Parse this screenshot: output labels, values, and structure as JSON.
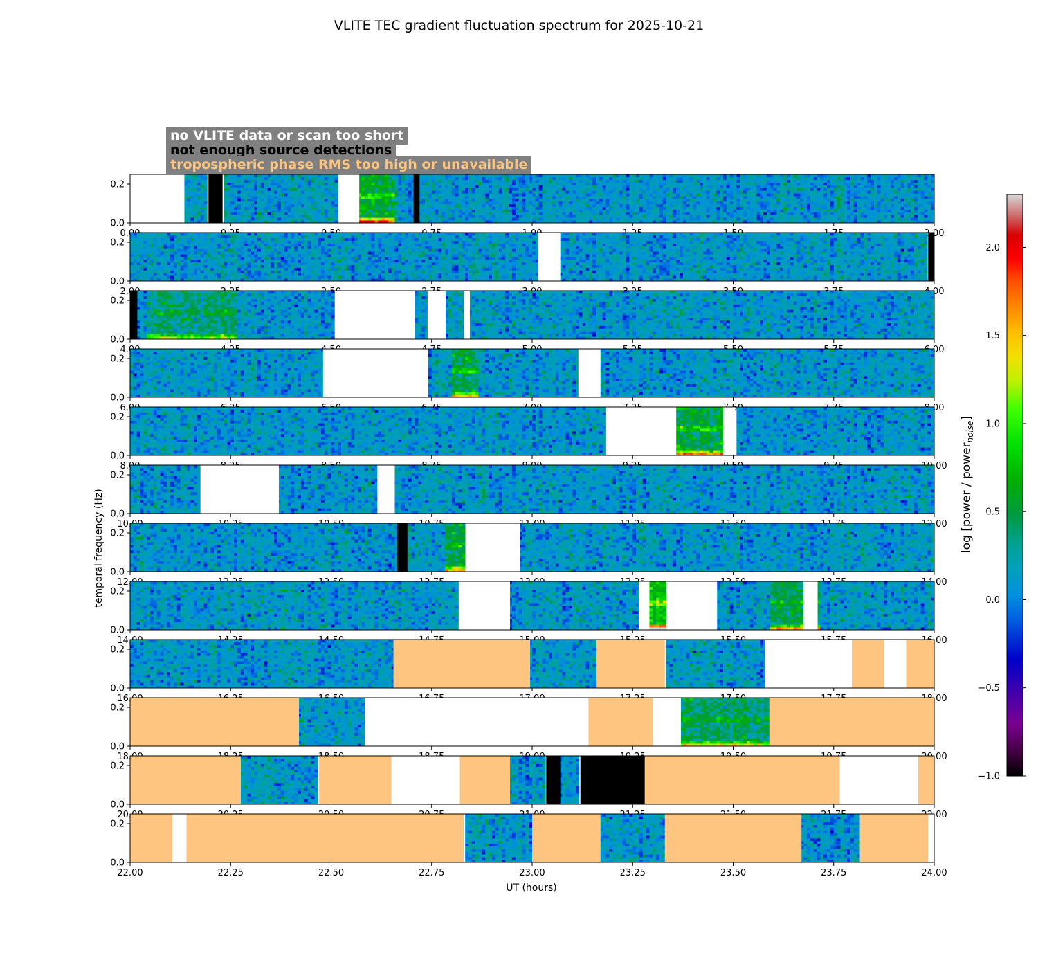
{
  "chart_data": {
    "type": "heatmap",
    "title": "VLITE TEC gradient fluctuation spectrum for 2025-10-21",
    "xlabel": "UT (hours)",
    "ylabel": "temporal frequency (Hz)",
    "colorbar_label": "log [power / power_noise]",
    "colorbar_range": [
      -1.0,
      2.3
    ],
    "colorbar_ticks": [
      "−1.0",
      "−0.5",
      "0.0",
      "0.5",
      "1.0",
      "1.5",
      "2.0"
    ],
    "y_range_hz": [
      0.0,
      0.25
    ],
    "y_ticks": [
      "0.0",
      "0.2"
    ],
    "legend": [
      {
        "label": "no VLITE data or scan too short",
        "color": "#ffffff"
      },
      {
        "label": "not enough source detections",
        "color": "#000000"
      },
      {
        "label": "tropospheric phase RMS too high or unavailable",
        "color": "#fdc57f"
      }
    ],
    "panels": [
      {
        "range": [
          0,
          2
        ],
        "ticks": [
          "0.00",
          "0.25",
          "0.50",
          "0.75",
          "1.00",
          "1.25",
          "1.50",
          "1.75",
          "2.00"
        ],
        "no_data": [
          [
            0.0,
            0.135
          ],
          [
            0.52,
            0.57
          ]
        ],
        "few_detections": [
          [
            0.195,
            0.23
          ],
          [
            0.705,
            0.72
          ]
        ],
        "tropo": [],
        "enhanced": [
          [
            0.57,
            0.655,
            0.9
          ]
        ]
      },
      {
        "range": [
          2,
          4
        ],
        "ticks": [
          "2.00",
          "2.25",
          "2.50",
          "2.75",
          "3.00",
          "3.25",
          "3.50",
          "3.75",
          "4.00"
        ],
        "no_data": [
          [
            3.015,
            3.07
          ]
        ],
        "few_detections": [
          [
            3.985,
            4.0
          ]
        ],
        "tropo": [],
        "enhanced": []
      },
      {
        "range": [
          4,
          6
        ],
        "ticks": [
          "4.00",
          "4.25",
          "4.50",
          "4.75",
          "5.00",
          "5.25",
          "5.50",
          "5.75",
          "6.00"
        ],
        "no_data": [
          [
            4.51,
            4.705
          ],
          [
            4.74,
            4.785
          ],
          [
            4.83,
            4.845
          ]
        ],
        "few_detections": [
          [
            4.0,
            4.018
          ]
        ],
        "tropo": [],
        "enhanced": [
          [
            4.04,
            4.27,
            0.5
          ]
        ]
      },
      {
        "range": [
          6,
          8
        ],
        "ticks": [
          "6.00",
          "6.25",
          "6.50",
          "6.75",
          "7.00",
          "7.25",
          "7.50",
          "7.75",
          "8.00"
        ],
        "no_data": [
          [
            6.48,
            6.74
          ],
          [
            7.115,
            7.17
          ]
        ],
        "few_detections": [],
        "tropo": [],
        "enhanced": [
          [
            6.8,
            6.87,
            0.7
          ]
        ]
      },
      {
        "range": [
          8,
          10
        ],
        "ticks": [
          "8.00",
          "8.25",
          "8.50",
          "8.75",
          "9.00",
          "9.25",
          "9.50",
          "9.75",
          "10.00"
        ],
        "no_data": [
          [
            9.185,
            9.355
          ],
          [
            9.475,
            9.505
          ]
        ],
        "few_detections": [],
        "tropo": [],
        "enhanced": [
          [
            9.355,
            9.475,
            0.8
          ]
        ]
      },
      {
        "range": [
          10,
          12
        ],
        "ticks": [
          "10.00",
          "10.25",
          "10.50",
          "10.75",
          "11.00",
          "11.25",
          "11.50",
          "11.75",
          "12.00"
        ],
        "no_data": [
          [
            10.175,
            10.37
          ],
          [
            10.615,
            10.655
          ]
        ],
        "few_detections": [],
        "tropo": [],
        "enhanced": []
      },
      {
        "range": [
          12,
          14
        ],
        "ticks": [
          "12.00",
          "12.25",
          "12.50",
          "12.75",
          "13.00",
          "13.25",
          "13.50",
          "13.75",
          "14.00"
        ],
        "no_data": [
          [
            12.835,
            12.97
          ]
        ],
        "few_detections": [
          [
            12.665,
            12.69
          ]
        ],
        "tropo": [],
        "enhanced": [
          [
            12.78,
            12.835,
            0.7
          ]
        ]
      },
      {
        "range": [
          14,
          16
        ],
        "ticks": [
          "14.00",
          "14.25",
          "14.50",
          "14.75",
          "15.00",
          "15.25",
          "15.50",
          "15.75",
          "16.00"
        ],
        "no_data": [
          [
            14.82,
            14.945
          ],
          [
            15.265,
            15.29
          ],
          [
            15.335,
            15.46
          ],
          [
            15.675,
            15.71
          ]
        ],
        "few_detections": [],
        "tropo": [],
        "enhanced": [
          [
            15.29,
            15.335,
            1.2
          ],
          [
            15.59,
            15.72,
            0.7
          ]
        ]
      },
      {
        "range": [
          16,
          18
        ],
        "ticks": [
          "16.00",
          "16.25",
          "16.50",
          "16.75",
          "17.00",
          "17.25",
          "17.50",
          "17.75",
          "18.00"
        ],
        "no_data": [
          [
            17.58,
            17.795
          ],
          [
            17.875,
            17.93
          ]
        ],
        "few_detections": [],
        "tropo": [
          [
            16.655,
            16.995
          ],
          [
            17.16,
            17.33
          ],
          [
            17.795,
            17.875
          ],
          [
            17.93,
            18.0
          ]
        ],
        "enhanced": []
      },
      {
        "range": [
          18,
          20
        ],
        "ticks": [
          "18.00",
          "18.25",
          "18.50",
          "18.75",
          "19.00",
          "19.25",
          "19.50",
          "19.75",
          "20.00"
        ],
        "no_data": [
          [
            18.585,
            19.14
          ],
          [
            19.3,
            19.37
          ]
        ],
        "few_detections": [],
        "tropo": [
          [
            18.0,
            18.42
          ],
          [
            19.14,
            19.3
          ],
          [
            19.59,
            20.0
          ]
        ],
        "enhanced": [
          [
            19.37,
            19.59,
            0.6
          ]
        ]
      },
      {
        "range": [
          20,
          22
        ],
        "ticks": [
          "20.00",
          "20.25",
          "20.50",
          "20.75",
          "21.00",
          "21.25",
          "21.50",
          "21.75",
          "22.00"
        ],
        "no_data": [
          [
            20.65,
            20.82
          ],
          [
            21.765,
            21.96
          ]
        ],
        "few_detections": [
          [
            21.035,
            21.07
          ],
          [
            21.12,
            21.28
          ]
        ],
        "tropo": [
          [
            20.0,
            20.275
          ],
          [
            20.47,
            20.65
          ],
          [
            20.82,
            20.945
          ],
          [
            21.28,
            21.765
          ],
          [
            21.96,
            22.0
          ]
        ],
        "enhanced": []
      },
      {
        "range": [
          22,
          24
        ],
        "ticks": [
          "22.00",
          "22.25",
          "22.50",
          "22.75",
          "23.00",
          "23.25",
          "23.50",
          "23.75",
          "24.00"
        ],
        "no_data": [
          [
            22.105,
            22.14
          ],
          [
            23.985,
            24.0
          ]
        ],
        "few_detections": [],
        "tropo": [
          [
            22.0,
            22.105
          ],
          [
            22.14,
            22.83
          ],
          [
            23.0,
            23.17
          ],
          [
            23.33,
            23.67
          ],
          [
            23.815,
            23.985
          ]
        ],
        "enhanced": []
      }
    ]
  }
}
